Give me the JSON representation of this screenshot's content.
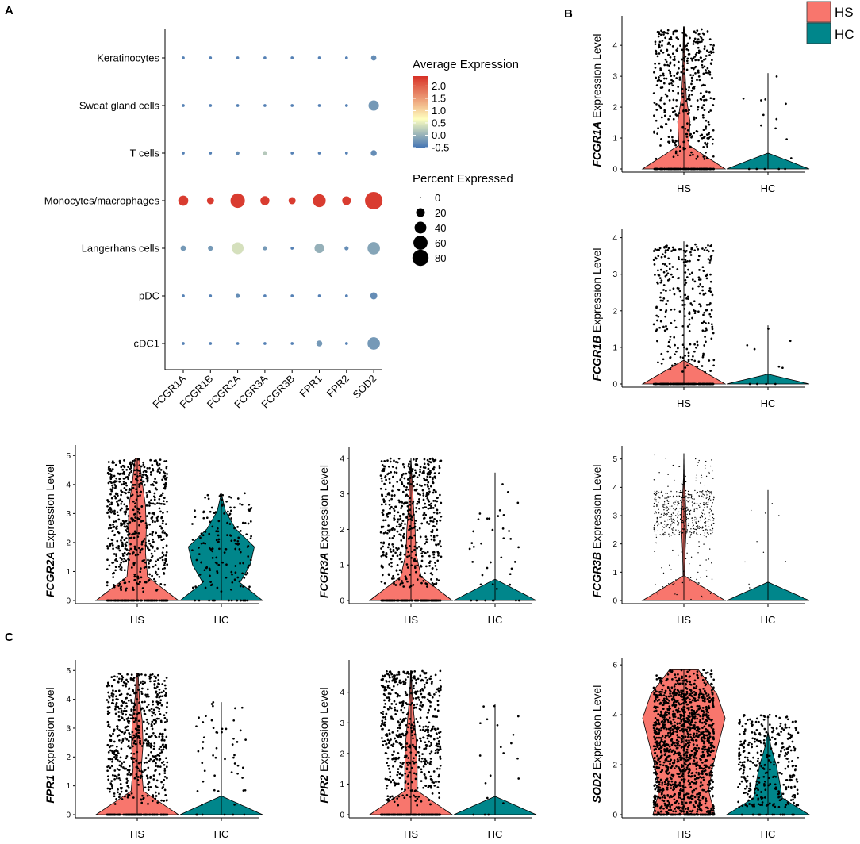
{
  "panel_labels": {
    "a": "A",
    "b": "B",
    "c": "C"
  },
  "colors": {
    "hs": "#F8766D",
    "hc": "#00868B",
    "points": "#000000",
    "scale_low": "#4575B4",
    "scale_mid": "#FFFFBF",
    "scale_high": "#D73027"
  },
  "group_legend": [
    {
      "label": "HS",
      "color": "#F8766D"
    },
    {
      "label": "HC",
      "color": "#00868B"
    }
  ],
  "chart_data": [
    {
      "id": "dotplot",
      "type": "scatter",
      "title": "",
      "genes": [
        "FCGR1A",
        "FCGR1B",
        "FCGR2A",
        "FCGR3A",
        "FCGR3B",
        "FPR1",
        "FPR2",
        "SOD2"
      ],
      "cell_types": [
        "Keratinocytes",
        "Sweat gland cells",
        "T cells",
        "Monocytes/macrophages",
        "Langerhans cells",
        "pDC",
        "cDC1"
      ],
      "avg_expression": [
        [
          -0.4,
          -0.4,
          -0.4,
          -0.4,
          -0.4,
          -0.4,
          -0.4,
          -0.3
        ],
        [
          -0.4,
          -0.4,
          -0.4,
          -0.4,
          -0.4,
          -0.4,
          -0.4,
          -0.2
        ],
        [
          -0.4,
          -0.4,
          -0.3,
          0.2,
          -0.4,
          -0.4,
          -0.4,
          -0.3
        ],
        [
          2.3,
          2.3,
          2.3,
          2.3,
          2.3,
          2.3,
          2.3,
          2.3
        ],
        [
          -0.2,
          -0.2,
          0.4,
          -0.2,
          -0.4,
          0.0,
          -0.3,
          -0.1
        ],
        [
          -0.4,
          -0.4,
          -0.3,
          -0.4,
          -0.4,
          -0.4,
          -0.4,
          -0.3
        ],
        [
          -0.4,
          -0.4,
          -0.4,
          -0.4,
          -0.4,
          -0.2,
          -0.4,
          -0.2
        ]
      ],
      "pct_expressed": [
        [
          1,
          1,
          1,
          1,
          1,
          1,
          1,
          6
        ],
        [
          1,
          1,
          1,
          1,
          1,
          1,
          1,
          30
        ],
        [
          1,
          1,
          2,
          3,
          1,
          1,
          1,
          8
        ],
        [
          28,
          12,
          62,
          22,
          12,
          48,
          20,
          95
        ],
        [
          6,
          5,
          40,
          3,
          1,
          25,
          3,
          45
        ],
        [
          1,
          1,
          3,
          1,
          1,
          1,
          1,
          12
        ],
        [
          1,
          1,
          1,
          1,
          1,
          8,
          1,
          45
        ]
      ],
      "color_legend_title": "Average Expression",
      "color_ticks": [
        "2.0",
        "1.5",
        "1.0",
        "0.5",
        "0.0",
        "-0.5"
      ],
      "color_range": [
        -0.5,
        2.4
      ],
      "size_legend_title": "Percent Expressed",
      "size_ticks": [
        "0",
        "20",
        "40",
        "60",
        "80"
      ]
    },
    {
      "id": "FCGR1A",
      "type": "violin",
      "gene": "FCGR1A",
      "ylabel_suffix": " Expression Level",
      "groups": [
        "HS",
        "HC"
      ],
      "yticks": [
        "0",
        "1",
        "2",
        "3",
        "4"
      ],
      "ylim": [
        0,
        4.8
      ],
      "hs": {
        "max": 4.6,
        "density": [
          1.0,
          0.12,
          0.15,
          0.06,
          0.03,
          0.02,
          0.01
        ],
        "point_count": 520,
        "point_max": 4.6,
        "zero_frac": 0.25
      },
      "hc": {
        "max": 3.1,
        "density": [
          1.0,
          0.0,
          0.0,
          0.0,
          0.0,
          0.0,
          0.0
        ],
        "point_count": 16,
        "point_max": 3.1,
        "zero_frac": 0.3
      }
    },
    {
      "id": "FCGR1B",
      "type": "violin",
      "gene": "FCGR1B",
      "ylabel_suffix": " Expression Level",
      "groups": [
        "HS",
        "HC"
      ],
      "yticks": [
        "0",
        "1",
        "2",
        "3",
        "4"
      ],
      "ylim": [
        0,
        4.1
      ],
      "hs": {
        "max": 3.9,
        "density": [
          1.0,
          0.0,
          0.0,
          0.0,
          0.0,
          0.0,
          0.0
        ],
        "point_count": 420,
        "point_max": 3.9,
        "zero_frac": 0.3
      },
      "hc": {
        "max": 1.6,
        "density": [
          1.0,
          0.0,
          0.0,
          0.0,
          0.0,
          0.0,
          0.0
        ],
        "point_count": 10,
        "point_max": 1.6,
        "zero_frac": 0.3
      }
    },
    {
      "id": "FCGR2A",
      "type": "violin",
      "gene": "FCGR2A",
      "ylabel_suffix": " Expression Level",
      "groups": [
        "HS",
        "HC"
      ],
      "yticks": [
        "0",
        "1",
        "2",
        "3",
        "4",
        "5"
      ],
      "ylim": [
        0,
        5.2
      ],
      "hs": {
        "max": 4.9,
        "density": [
          1.0,
          0.25,
          0.2,
          0.22,
          0.2,
          0.12,
          0.05
        ],
        "point_count": 700,
        "point_max": 4.9,
        "zero_frac": 0.12
      },
      "hc": {
        "max": 3.7,
        "density": [
          1.0,
          0.45,
          0.7,
          0.8,
          0.35,
          0.1,
          0.0
        ],
        "point_count": 170,
        "point_max": 3.7,
        "zero_frac": 0.12
      }
    },
    {
      "id": "FCGR3A",
      "type": "violin",
      "gene": "FCGR3A",
      "ylabel_suffix": " Expression Level",
      "groups": [
        "HS",
        "HC"
      ],
      "yticks": [
        "0",
        "1",
        "2",
        "3",
        "4"
      ],
      "ylim": [
        0,
        4.2
      ],
      "hs": {
        "max": 4.0,
        "density": [
          1.0,
          0.25,
          0.12,
          0.1,
          0.06,
          0.03,
          0.0
        ],
        "point_count": 680,
        "point_max": 4.0,
        "zero_frac": 0.2
      },
      "hc": {
        "max": 3.6,
        "density": [
          1.0,
          0.0,
          0.0,
          0.0,
          0.0,
          0.0,
          0.0
        ],
        "point_count": 40,
        "point_max": 3.6,
        "zero_frac": 0.2
      }
    },
    {
      "id": "FCGR3B",
      "type": "violin",
      "gene": "FCGR3B",
      "ylabel_suffix": " Expression Level",
      "groups": [
        "HS",
        "HC"
      ],
      "yticks": [
        "0",
        "1",
        "2",
        "3",
        "4",
        "5"
      ],
      "ylim": [
        0,
        5.3
      ],
      "hs": {
        "max": 5.2,
        "density": [
          1.0,
          0.02,
          0.03,
          0.06,
          0.04,
          0.01,
          0.0
        ],
        "point_count": 520,
        "point_max": 5.2,
        "zero_frac": 0.0
      },
      "hc": {
        "max": 3.9,
        "density": [
          1.0,
          0.0,
          0.0,
          0.0,
          0.0,
          0.0,
          0.0
        ],
        "point_count": 10,
        "point_max": 3.9,
        "zero_frac": 0.0
      }
    },
    {
      "id": "FPR1",
      "type": "violin",
      "gene": "FPR1",
      "ylabel_suffix": " Expression Level",
      "groups": [
        "HS",
        "HC"
      ],
      "yticks": [
        "0",
        "1",
        "2",
        "3",
        "4",
        "5"
      ],
      "ylim": [
        0,
        5.2
      ],
      "hs": {
        "max": 4.9,
        "density": [
          1.0,
          0.15,
          0.1,
          0.14,
          0.12,
          0.05,
          0.02
        ],
        "point_count": 700,
        "point_max": 4.9,
        "zero_frac": 0.15
      },
      "hc": {
        "max": 3.9,
        "density": [
          1.0,
          0.0,
          0.0,
          0.0,
          0.0,
          0.0,
          0.0
        ],
        "point_count": 55,
        "point_max": 3.9,
        "zero_frac": 0.15
      }
    },
    {
      "id": "FPR2",
      "type": "violin",
      "gene": "FPR2",
      "ylabel_suffix": " Expression Level",
      "groups": [
        "HS",
        "HC"
      ],
      "yticks": [
        "0",
        "1",
        "2",
        "3",
        "4"
      ],
      "ylim": [
        0,
        4.9
      ],
      "hs": {
        "max": 4.7,
        "density": [
          1.0,
          0.15,
          0.15,
          0.13,
          0.08,
          0.03,
          0.01
        ],
        "point_count": 700,
        "point_max": 4.7,
        "zero_frac": 0.2
      },
      "hc": {
        "max": 3.6,
        "density": [
          1.0,
          0.0,
          0.0,
          0.0,
          0.0,
          0.0,
          0.0
        ],
        "point_count": 20,
        "point_max": 3.6,
        "zero_frac": 0.2
      }
    },
    {
      "id": "SOD2",
      "type": "violin",
      "gene": "SOD2",
      "ylabel_suffix": " Expression Level",
      "groups": [
        "HS",
        "HC"
      ],
      "yticks": [
        "0",
        "2",
        "4",
        "6"
      ],
      "ylim": [
        0,
        6.1
      ],
      "hs": {
        "max": 5.8,
        "density": [
          0.75,
          0.6,
          0.7,
          0.85,
          1.0,
          0.8,
          0.35
        ],
        "point_count": 1400,
        "point_max": 5.8,
        "zero_frac": 0.05
      },
      "hc": {
        "max": 4.0,
        "density": [
          1.0,
          0.35,
          0.28,
          0.2,
          0.08,
          0.0,
          0.0
        ],
        "point_count": 350,
        "point_max": 4.0,
        "zero_frac": 0.05
      }
    }
  ]
}
